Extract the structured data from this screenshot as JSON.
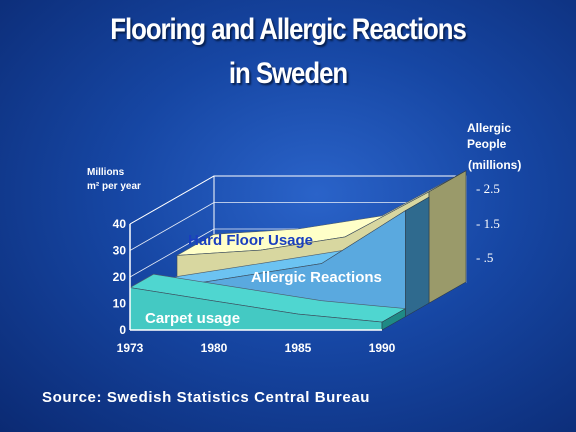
{
  "slide": {
    "title_line1": "Flooring and Allergic Reactions",
    "title_line2": "in Sweden",
    "source": "Source:  Swedish Statistics Central Bureau"
  },
  "chart_data": {
    "type": "area",
    "view": "3d",
    "title": "Flooring and Allergic Reactions in Sweden",
    "left_axis_label_line1": "Millions",
    "left_axis_label_line2": "m² per  year",
    "right_axis_label_line1": "Allergic",
    "right_axis_label_line2": "People",
    "right_axis_label_line3": "(millions)",
    "x": [
      "1973",
      "1980",
      "1985",
      "1990"
    ],
    "y_ticks": [
      "0",
      "10",
      "20",
      "30",
      "40"
    ],
    "ylim": [
      0,
      40
    ],
    "right_ticks": [
      "- 2.5",
      "- 1.5",
      "- .5"
    ],
    "grid": true,
    "colors": {
      "carpet": "#4fd6d0",
      "allergic": "#6cc3f2",
      "hard_floor": "#ffffc8",
      "frame": "#ffffff"
    },
    "series": [
      {
        "name": "Hard Floor Usage",
        "values": [
          18,
          20,
          25,
          42
        ]
      },
      {
        "name": "Allergic Reactions",
        "values": [
          10,
          15,
          20,
          40
        ]
      },
      {
        "name": "Carpet usage",
        "values": [
          16,
          11,
          6,
          3
        ]
      }
    ]
  }
}
